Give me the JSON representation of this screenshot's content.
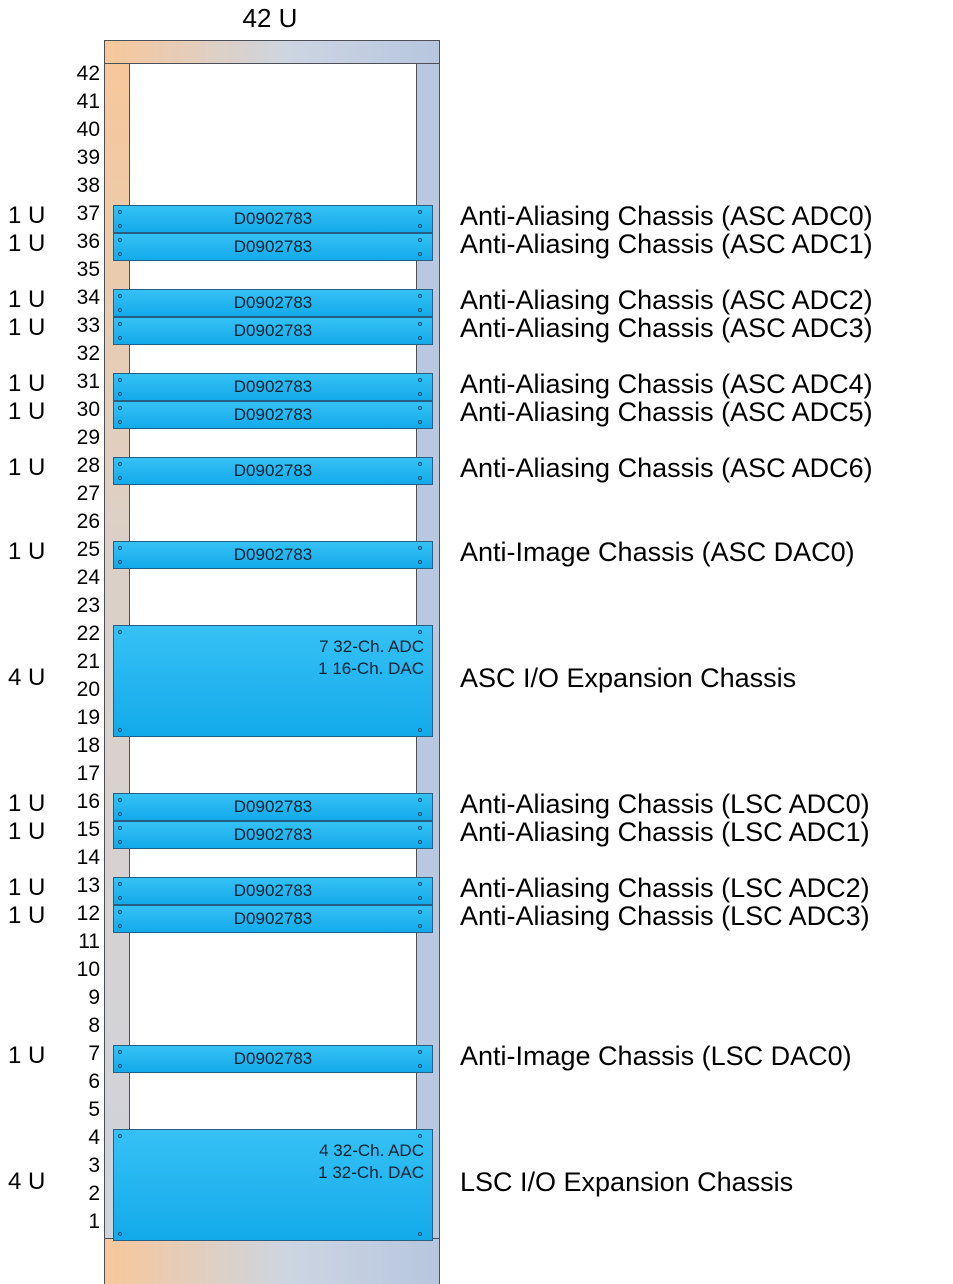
{
  "rack": {
    "title": "42 U"
  },
  "unit_numbers": [
    "42",
    "41",
    "40",
    "39",
    "38",
    "37",
    "36",
    "35",
    "34",
    "33",
    "32",
    "31",
    "30",
    "29",
    "28",
    "27",
    "26",
    "25",
    "24",
    "23",
    "22",
    "21",
    "20",
    "19",
    "18",
    "17",
    "16",
    "15",
    "14",
    "13",
    "12",
    "11",
    "10",
    "9",
    "8",
    "7",
    "6",
    "5",
    "4",
    "3",
    "2",
    "1"
  ],
  "devices": [
    {
      "size": "1 U",
      "part": "D0902783",
      "label": "Anti-Aliasing Chassis (ASC ADC0)",
      "top_unit": 37,
      "units": 1
    },
    {
      "size": "1 U",
      "part": "D0902783",
      "label": "Anti-Aliasing Chassis (ASC ADC1)",
      "top_unit": 36,
      "units": 1
    },
    {
      "size": "1 U",
      "part": "D0902783",
      "label": "Anti-Aliasing Chassis (ASC ADC2)",
      "top_unit": 34,
      "units": 1
    },
    {
      "size": "1 U",
      "part": "D0902783",
      "label": "Anti-Aliasing Chassis (ASC ADC3)",
      "top_unit": 33,
      "units": 1
    },
    {
      "size": "1 U",
      "part": "D0902783",
      "label": "Anti-Aliasing Chassis (ASC ADC4)",
      "top_unit": 31,
      "units": 1
    },
    {
      "size": "1 U",
      "part": "D0902783",
      "label": "Anti-Aliasing Chassis (ASC ADC5)",
      "top_unit": 30,
      "units": 1
    },
    {
      "size": "1 U",
      "part": "D0902783",
      "label": "Anti-Aliasing Chassis (ASC ADC6)",
      "top_unit": 28,
      "units": 1
    },
    {
      "size": "1 U",
      "part": "D0902783",
      "label": "Anti-Image Chassis (ASC DAC0)",
      "top_unit": 25,
      "units": 1
    },
    {
      "size": "4 U",
      "spec": [
        "7 32-Ch. ADC",
        "1 16-Ch. DAC"
      ],
      "label": "ASC I/O Expansion Chassis",
      "top_unit": 22,
      "units": 4
    },
    {
      "size": "1 U",
      "part": "D0902783",
      "label": "Anti-Aliasing Chassis (LSC ADC0)",
      "top_unit": 16,
      "units": 1
    },
    {
      "size": "1 U",
      "part": "D0902783",
      "label": "Anti-Aliasing Chassis (LSC ADC1)",
      "top_unit": 15,
      "units": 1
    },
    {
      "size": "1 U",
      "part": "D0902783",
      "label": "Anti-Aliasing Chassis (LSC ADC2)",
      "top_unit": 13,
      "units": 1
    },
    {
      "size": "1 U",
      "part": "D0902783",
      "label": "Anti-Aliasing Chassis (LSC ADC3)",
      "top_unit": 12,
      "units": 1
    },
    {
      "size": "1 U",
      "part": "D0902783",
      "label": "Anti-Image Chassis (LSC DAC0)",
      "top_unit": 7,
      "units": 1
    },
    {
      "size": "4 U",
      "spec": [
        "4 32-Ch. ADC",
        "1 32-Ch. DAC"
      ],
      "label": "LSC I/O Expansion Chassis",
      "top_unit": 4,
      "units": 4
    }
  ],
  "colors": {
    "chassis": "#13aaea",
    "rail_right": "#b9c7df",
    "rail_left_top": "#f7c79a"
  }
}
